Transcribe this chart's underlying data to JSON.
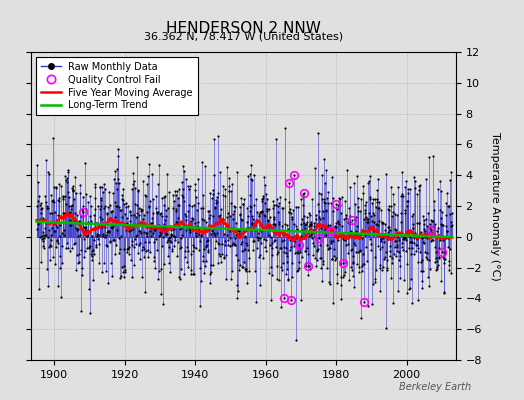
{
  "title": "HENDERSON 2 NNW",
  "subtitle": "36.362 N, 78.417 W (United States)",
  "ylabel": "Temperature Anomaly (°C)",
  "credit": "Berkeley Earth",
  "year_start": 1895,
  "year_end": 2012,
  "ylim": [
    -8,
    12
  ],
  "yticks": [
    -8,
    -6,
    -4,
    -2,
    0,
    2,
    4,
    6,
    8,
    10,
    12
  ],
  "background_color": "#e0e0e0",
  "plot_bg_color": "#e0e0e0",
  "raw_line_color": "#3333cc",
  "raw_marker_color": "#000000",
  "moving_avg_color": "#ff0000",
  "trend_color": "#00bb00",
  "qc_fail_color": "#ff00ff",
  "seed": 99
}
